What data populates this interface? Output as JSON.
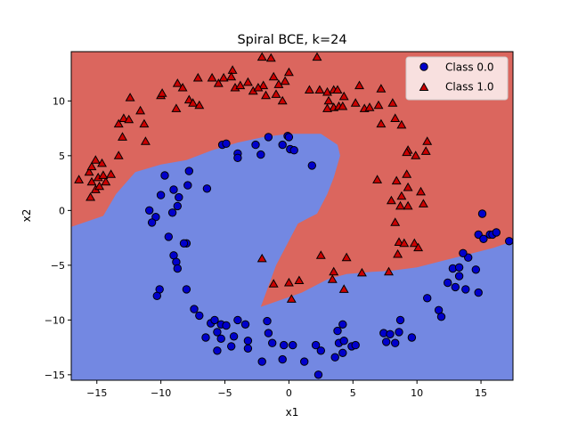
{
  "chart_data": {
    "type": "scatter",
    "title": "Spiral BCE, k=24",
    "xlabel": "x1",
    "ylabel": "x2",
    "xlim": [
      -17,
      17.5
    ],
    "ylim": [
      -15.5,
      14.5
    ],
    "xticks": [
      -15,
      -10,
      -5,
      0,
      5,
      10,
      15
    ],
    "yticks": [
      -15,
      -10,
      -5,
      0,
      5,
      10
    ],
    "legend_position": "top-right",
    "colors": {
      "region_class0": "#7388e2",
      "region_class1": "#db665e",
      "class0_marker": "#0000cc",
      "class1_marker": "#cc0000"
    },
    "decision_boundary": [
      [
        -17,
        -1.5
      ],
      [
        -14.5,
        -0.5
      ],
      [
        -13.5,
        1.5
      ],
      [
        -12,
        3.5
      ],
      [
        -10,
        4.2
      ],
      [
        -8,
        4.6
      ],
      [
        -6,
        5.5
      ],
      [
        -4,
        6.2
      ],
      [
        -2,
        6.7
      ],
      [
        0,
        7.0
      ],
      [
        2.5,
        7.0
      ],
      [
        3.8,
        6.0
      ],
      [
        4.0,
        5.0
      ],
      [
        3.5,
        3.0
      ],
      [
        3.0,
        1.5
      ],
      [
        2.2,
        -0.3
      ],
      [
        1.5,
        -0.7
      ],
      [
        0.7,
        -1.2
      ],
      [
        -1.0,
        -5.0
      ],
      [
        -2.2,
        -8.8
      ],
      [
        1.0,
        -7.5
      ],
      [
        3.0,
        -6.3
      ],
      [
        4.5,
        -5.8
      ],
      [
        6.5,
        -5.6
      ],
      [
        8.0,
        -5.5
      ],
      [
        10.0,
        -5.2
      ],
      [
        12.0,
        -4.6
      ],
      [
        14.0,
        -4.0
      ],
      [
        16.0,
        -3.4
      ],
      [
        17.5,
        -2.8
      ]
    ],
    "series": [
      {
        "name": "Class 0.0",
        "marker": "circle",
        "points": [
          [
            -5.2,
            6.0
          ],
          [
            -4.9,
            6.1
          ],
          [
            -4.0,
            5.2
          ],
          [
            -4.0,
            4.8
          ],
          [
            -2.6,
            6.0
          ],
          [
            -2.2,
            5.1
          ],
          [
            -1.6,
            6.7
          ],
          [
            -0.5,
            6.0
          ],
          [
            -0.1,
            6.8
          ],
          [
            0.0,
            6.7
          ],
          [
            0.1,
            5.6
          ],
          [
            0.4,
            5.5
          ],
          [
            1.8,
            4.1
          ],
          [
            -7.8,
            3.6
          ],
          [
            -9.7,
            3.2
          ],
          [
            -7.9,
            2.3
          ],
          [
            -6.4,
            2.0
          ],
          [
            -9.0,
            1.9
          ],
          [
            -10.0,
            1.4
          ],
          [
            -8.6,
            1.2
          ],
          [
            -8.7,
            0.4
          ],
          [
            -9.1,
            -0.2
          ],
          [
            -10.9,
            0.0
          ],
          [
            -10.4,
            -0.6
          ],
          [
            -10.7,
            -1.1
          ],
          [
            -9.4,
            -2.4
          ],
          [
            -8.0,
            -3.0
          ],
          [
            -8.2,
            -3.0
          ],
          [
            -9.0,
            -4.1
          ],
          [
            -8.8,
            -4.7
          ],
          [
            -8.7,
            -5.3
          ],
          [
            -8.0,
            -7.2
          ],
          [
            -10.1,
            -7.2
          ],
          [
            -10.3,
            -7.8
          ],
          [
            -7.4,
            -9.0
          ],
          [
            -7.0,
            -9.6
          ],
          [
            -6.1,
            -10.3
          ],
          [
            -5.8,
            -10.0
          ],
          [
            -5.3,
            -10.4
          ],
          [
            -4.9,
            -10.5
          ],
          [
            -4.0,
            -10.0
          ],
          [
            -3.4,
            -10.4
          ],
          [
            -1.7,
            -10.1
          ],
          [
            -5.6,
            -11.1
          ],
          [
            -6.5,
            -11.6
          ],
          [
            -5.3,
            -11.7
          ],
          [
            -4.3,
            -11.5
          ],
          [
            -3.2,
            -11.9
          ],
          [
            -5.6,
            -12.8
          ],
          [
            -4.5,
            -12.4
          ],
          [
            -3.2,
            -12.6
          ],
          [
            -1.6,
            -11.2
          ],
          [
            -1.3,
            -12.1
          ],
          [
            -0.4,
            -12.3
          ],
          [
            -2.1,
            -13.8
          ],
          [
            -0.5,
            -13.6
          ],
          [
            0.3,
            -12.3
          ],
          [
            1.2,
            -13.8
          ],
          [
            2.1,
            -12.3
          ],
          [
            2.5,
            -12.8
          ],
          [
            2.3,
            -15.0
          ],
          [
            3.8,
            -11.0
          ],
          [
            3.9,
            -12.1
          ],
          [
            3.6,
            -13.4
          ],
          [
            4.2,
            -13.0
          ],
          [
            4.3,
            -11.9
          ],
          [
            4.2,
            -10.4
          ],
          [
            4.9,
            -12.4
          ],
          [
            5.2,
            -12.3
          ],
          [
            7.4,
            -11.2
          ],
          [
            7.9,
            -11.3
          ],
          [
            7.6,
            -12.0
          ],
          [
            8.3,
            -12.1
          ],
          [
            8.6,
            -11.1
          ],
          [
            8.7,
            -10.0
          ],
          [
            9.6,
            -11.6
          ],
          [
            10.8,
            -8.0
          ],
          [
            11.7,
            -9.1
          ],
          [
            11.9,
            -9.7
          ],
          [
            12.4,
            -6.6
          ],
          [
            12.8,
            -5.3
          ],
          [
            13.3,
            -5.2
          ],
          [
            13.0,
            -7.0
          ],
          [
            13.8,
            -7.2
          ],
          [
            13.3,
            -6.0
          ],
          [
            14.0,
            -4.3
          ],
          [
            13.6,
            -3.9
          ],
          [
            14.6,
            -5.4
          ],
          [
            14.8,
            -2.2
          ],
          [
            15.2,
            -2.6
          ],
          [
            14.8,
            -7.5
          ],
          [
            15.1,
            -0.3
          ],
          [
            15.7,
            -2.2
          ],
          [
            15.9,
            -2.2
          ],
          [
            16.2,
            -2.0
          ],
          [
            17.2,
            -2.8
          ]
        ]
      },
      {
        "name": "Class 1.0",
        "marker": "triangle",
        "points": [
          [
            -16.4,
            2.8
          ],
          [
            -15.6,
            3.5
          ],
          [
            -15.4,
            4.0
          ],
          [
            -15.1,
            4.6
          ],
          [
            -14.9,
            3.0
          ],
          [
            -14.6,
            4.3
          ],
          [
            -14.3,
            2.6
          ],
          [
            -15.4,
            2.6
          ],
          [
            -15.1,
            1.9
          ],
          [
            -14.8,
            2.2
          ],
          [
            -14.5,
            3.2
          ],
          [
            -13.9,
            3.3
          ],
          [
            -15.5,
            1.2
          ],
          [
            -13.3,
            5.0
          ],
          [
            -13.0,
            6.7
          ],
          [
            -13.3,
            7.9
          ],
          [
            -12.9,
            8.4
          ],
          [
            -12.5,
            8.3
          ],
          [
            -12.4,
            10.3
          ],
          [
            -11.6,
            9.1
          ],
          [
            -11.3,
            7.9
          ],
          [
            -11.2,
            6.3
          ],
          [
            -10.0,
            10.5
          ],
          [
            -9.9,
            10.7
          ],
          [
            -8.7,
            11.6
          ],
          [
            -8.3,
            11.2
          ],
          [
            -7.8,
            10.1
          ],
          [
            -8.8,
            9.3
          ],
          [
            -7.5,
            9.8
          ],
          [
            -7.1,
            12.1
          ],
          [
            -7.0,
            9.6
          ],
          [
            -6.0,
            12.1
          ],
          [
            -5.5,
            11.6
          ],
          [
            -5.1,
            12.1
          ],
          [
            -4.4,
            12.8
          ],
          [
            -4.5,
            12.2
          ],
          [
            -4.2,
            11.2
          ],
          [
            -3.8,
            11.4
          ],
          [
            -3.2,
            11.7
          ],
          [
            -2.8,
            10.9
          ],
          [
            -2.1,
            14.0
          ],
          [
            -2.0,
            11.4
          ],
          [
            -1.4,
            13.9
          ],
          [
            -1.2,
            12.2
          ],
          [
            -0.8,
            11.5
          ],
          [
            -0.3,
            11.8
          ],
          [
            -2.4,
            11.2
          ],
          [
            -1.8,
            10.5
          ],
          [
            -1.0,
            10.6
          ],
          [
            -0.5,
            10.0
          ],
          [
            0.0,
            12.6
          ],
          [
            2.2,
            14.0
          ],
          [
            1.6,
            11.0
          ],
          [
            2.4,
            11.0
          ],
          [
            3.0,
            10.8
          ],
          [
            3.5,
            11.0
          ],
          [
            3.8,
            11.0
          ],
          [
            4.3,
            10.4
          ],
          [
            3.5,
            9.4
          ],
          [
            3.9,
            9.5
          ],
          [
            3.1,
            10.0
          ],
          [
            3.0,
            9.3
          ],
          [
            4.2,
            9.5
          ],
          [
            5.5,
            11.4
          ],
          [
            5.2,
            9.8
          ],
          [
            5.9,
            9.3
          ],
          [
            6.3,
            9.4
          ],
          [
            7.2,
            11.1
          ],
          [
            7.0,
            9.6
          ],
          [
            8.1,
            9.8
          ],
          [
            8.3,
            8.4
          ],
          [
            7.2,
            7.9
          ],
          [
            8.8,
            7.8
          ],
          [
            9.3,
            5.5
          ],
          [
            9.9,
            5.0
          ],
          [
            9.2,
            5.3
          ],
          [
            10.8,
            6.3
          ],
          [
            9.2,
            3.3
          ],
          [
            10.7,
            5.4
          ],
          [
            6.9,
            2.8
          ],
          [
            8.4,
            2.7
          ],
          [
            9.3,
            2.1
          ],
          [
            8.8,
            1.3
          ],
          [
            10.3,
            1.7
          ],
          [
            10.5,
            0.6
          ],
          [
            9.3,
            0.4
          ],
          [
            8.7,
            0.4
          ],
          [
            8.3,
            -1.1
          ],
          [
            8.0,
            0.9
          ],
          [
            8.6,
            -2.9
          ],
          [
            9.0,
            -3.0
          ],
          [
            8.5,
            -4.0
          ],
          [
            9.8,
            -3.0
          ],
          [
            10.1,
            -3.4
          ],
          [
            7.8,
            -5.6
          ],
          [
            -2.1,
            -4.4
          ],
          [
            -1.2,
            -6.7
          ],
          [
            0.0,
            -6.6
          ],
          [
            0.2,
            -8.1
          ],
          [
            0.8,
            -6.4
          ],
          [
            2.5,
            -4.1
          ],
          [
            3.5,
            -5.6
          ],
          [
            3.4,
            -6.3
          ],
          [
            4.5,
            -4.3
          ],
          [
            4.3,
            -7.2
          ],
          [
            5.7,
            -5.7
          ]
        ]
      }
    ]
  }
}
